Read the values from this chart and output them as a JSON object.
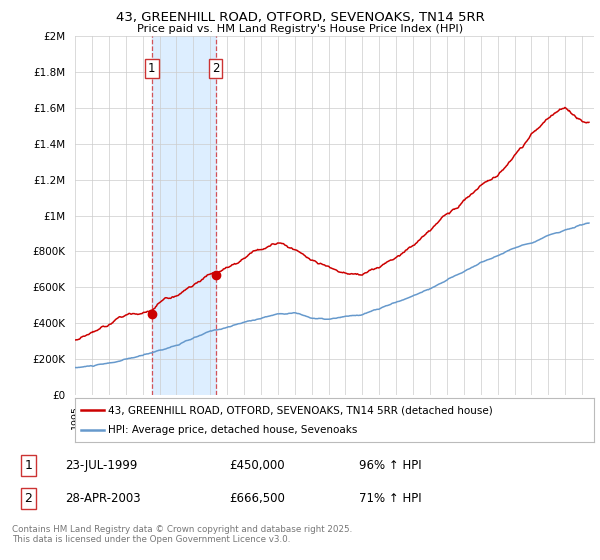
{
  "title_line1": "43, GREENHILL ROAD, OTFORD, SEVENOAKS, TN14 5RR",
  "title_line2": "Price paid vs. HM Land Registry's House Price Index (HPI)",
  "ytick_values": [
    0,
    200000,
    400000,
    600000,
    800000,
    1000000,
    1200000,
    1400000,
    1600000,
    1800000,
    2000000
  ],
  "ylim": [
    0,
    2000000
  ],
  "xlim_start": 1995.0,
  "xlim_end": 2025.7,
  "sale1_date": 1999.55,
  "sale1_price": 450000,
  "sale1_label": "1",
  "sale1_hpi_pct": "96% ↑ HPI",
  "sale1_date_str": "23-JUL-1999",
  "sale2_date": 2003.32,
  "sale2_price": 666500,
  "sale2_label": "2",
  "sale2_hpi_pct": "71% ↑ HPI",
  "sale2_date_str": "28-APR-2003",
  "red_color": "#cc0000",
  "blue_color": "#6699cc",
  "shaded_color": "#ddeeff",
  "grid_color": "#cccccc",
  "legend_label_red": "43, GREENHILL ROAD, OTFORD, SEVENOAKS, TN14 5RR (detached house)",
  "legend_label_blue": "HPI: Average price, detached house, Sevenoaks",
  "footer_text": "Contains HM Land Registry data © Crown copyright and database right 2025.\nThis data is licensed under the Open Government Licence v3.0.",
  "background_color": "#ffffff"
}
